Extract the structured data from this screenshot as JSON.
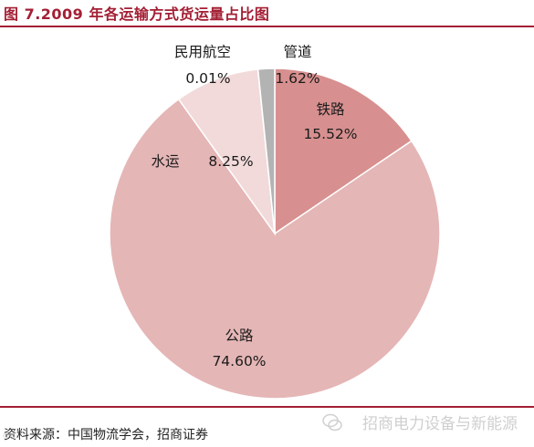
{
  "title": "图 7.2009 年各运输方式货运量占比图",
  "source": "资料来源：中国物流学会，招商证券",
  "watermark": "招商电力设备与新能源",
  "corner_mark": "©©",
  "chart_data": {
    "type": "pie",
    "title": "图 7.2009 年各运输方式货运量占比图",
    "unit": "%",
    "slices": [
      {
        "label": "铁路",
        "value": 15.52,
        "display": "15.52%",
        "color": "#d7908f"
      },
      {
        "label": "公路",
        "value": 74.6,
        "display": "74.60%",
        "color": "#e5b6b6"
      },
      {
        "label": "水运",
        "value": 8.25,
        "display": "8.25%",
        "color": "#f2dada"
      },
      {
        "label": "民用航空",
        "value": 0.01,
        "display": "0.01%",
        "color": "#f2dada"
      },
      {
        "label": "管道",
        "value": 1.62,
        "display": "1.62%",
        "color": "#b3b3b3"
      }
    ],
    "legend": "none"
  }
}
